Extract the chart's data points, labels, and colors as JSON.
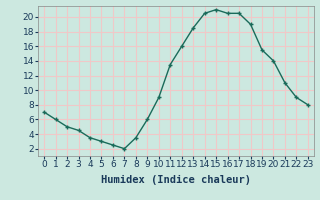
{
  "x": [
    0,
    1,
    2,
    3,
    4,
    5,
    6,
    7,
    8,
    9,
    10,
    11,
    12,
    13,
    14,
    15,
    16,
    17,
    18,
    19,
    20,
    21,
    22,
    23
  ],
  "y": [
    7,
    6,
    5,
    4.5,
    3.5,
    3,
    2.5,
    2,
    3.5,
    6,
    9,
    13.5,
    16,
    18.5,
    20.5,
    21,
    20.5,
    20.5,
    19,
    15.5,
    14,
    11,
    9,
    8
  ],
  "line_color": "#1a6b5a",
  "marker": "+",
  "bg_color": "#cce8e0",
  "grid_color": "#f0c8c8",
  "xlabel": "Humidex (Indice chaleur)",
  "xlim": [
    -0.5,
    23.5
  ],
  "ylim": [
    1,
    21.5
  ],
  "yticks": [
    2,
    4,
    6,
    8,
    10,
    12,
    14,
    16,
    18,
    20
  ],
  "xticks": [
    0,
    1,
    2,
    3,
    4,
    5,
    6,
    7,
    8,
    9,
    10,
    11,
    12,
    13,
    14,
    15,
    16,
    17,
    18,
    19,
    20,
    21,
    22,
    23
  ],
  "xtick_labels": [
    "0",
    "1",
    "2",
    "3",
    "4",
    "5",
    "6",
    "7",
    "8",
    "9",
    "10",
    "11",
    "12",
    "13",
    "14",
    "15",
    "16",
    "17",
    "18",
    "19",
    "20",
    "21",
    "22",
    "23"
  ],
  "font_color": "#1a3a5a",
  "xlabel_fontsize": 7.5,
  "tick_fontsize": 6.5,
  "linewidth": 1.0,
  "markersize": 3.5,
  "markeredgewidth": 1.0
}
